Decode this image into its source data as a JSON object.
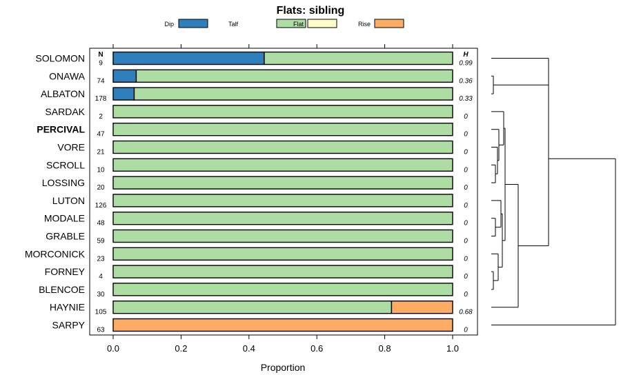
{
  "chart_data": {
    "type": "bar",
    "stacked": true,
    "orientation": "horizontal",
    "title": "Flats: sibling",
    "xlabel": "Proportion",
    "xlim": [
      0,
      1
    ],
    "x_ticks": [
      "0.0",
      "0.2",
      "0.4",
      "0.6",
      "0.8",
      "1.0"
    ],
    "legend": [
      {
        "name": "Dip",
        "color": "#2e7fbb"
      },
      {
        "name": "Talf",
        "color": "#addda2"
      },
      {
        "name": "Flat",
        "color": "#fefecb"
      },
      {
        "name": "Rise",
        "color": "#fdad63"
      }
    ],
    "n_header": "N",
    "h_header": "H",
    "highlighted_category": "PERCIVAL",
    "categories": [
      "SOLOMON",
      "ONAWA",
      "ALBATON",
      "SARDAK",
      "PERCIVAL",
      "VORE",
      "SCROLL",
      "LOSSING",
      "LUTON",
      "MODALE",
      "GRABLE",
      "MORCONICK",
      "FORNEY",
      "BLENCOE",
      "HAYNIE",
      "SARPY"
    ],
    "n": [
      "9",
      "74",
      "178",
      "2",
      "47",
      "21",
      "10",
      "20",
      "126",
      "48",
      "59",
      "23",
      "4",
      "30",
      "105",
      "63"
    ],
    "h": [
      "0.99",
      "0.36",
      "0.33",
      "0",
      "0",
      "0",
      "0",
      "0",
      "0",
      "0",
      "0",
      "0",
      "0",
      "0",
      "0.68",
      "0"
    ],
    "series": [
      {
        "name": "Dip",
        "values": [
          0.445,
          0.068,
          0.062,
          0,
          0,
          0,
          0,
          0,
          0,
          0,
          0,
          0,
          0,
          0,
          0,
          0
        ]
      },
      {
        "name": "Talf",
        "values": [
          0.555,
          0.932,
          0.938,
          1,
          1,
          1,
          1,
          1,
          1,
          1,
          1,
          1,
          1,
          1,
          0.82,
          0
        ]
      },
      {
        "name": "Flat",
        "values": [
          0,
          0,
          0,
          0,
          0,
          0,
          0,
          0,
          0,
          0,
          0,
          0,
          0,
          0,
          0,
          0
        ]
      },
      {
        "name": "Rise",
        "values": [
          0,
          0,
          0,
          0,
          0,
          0,
          0,
          0,
          0,
          0,
          0,
          0,
          0,
          0,
          0.18,
          1
        ]
      }
    ],
    "dendrogram_order": [
      "SOLOMON",
      "ONAWA",
      "ALBATON",
      "SARDAK",
      "PERCIVAL",
      "VORE",
      "SCROLL",
      "LOSSING",
      "LUTON",
      "MODALE",
      "GRABLE",
      "MORCONICK",
      "FORNEY",
      "BLENCOE",
      "HAYNIE",
      "SARPY"
    ]
  }
}
